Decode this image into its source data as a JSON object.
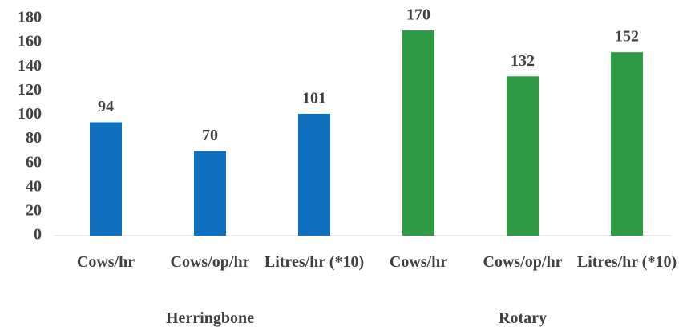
{
  "chart_data": {
    "type": "bar",
    "ylim": [
      0,
      180
    ],
    "yticks": [
      0,
      20,
      40,
      60,
      80,
      100,
      120,
      140,
      160,
      180
    ],
    "groups": [
      {
        "name": "Herringbone",
        "color": "#1070c0",
        "categories": [
          "Cows/hr",
          "Cows/op/hr",
          "Litres/hr (*10)"
        ],
        "values": [
          94,
          70,
          101
        ]
      },
      {
        "name": "Rotary",
        "color": "#2e9a44",
        "categories": [
          "Cows/hr",
          "Cows/op/hr",
          "Litres/hr (*10)"
        ],
        "values": [
          170,
          132,
          152
        ]
      }
    ]
  }
}
